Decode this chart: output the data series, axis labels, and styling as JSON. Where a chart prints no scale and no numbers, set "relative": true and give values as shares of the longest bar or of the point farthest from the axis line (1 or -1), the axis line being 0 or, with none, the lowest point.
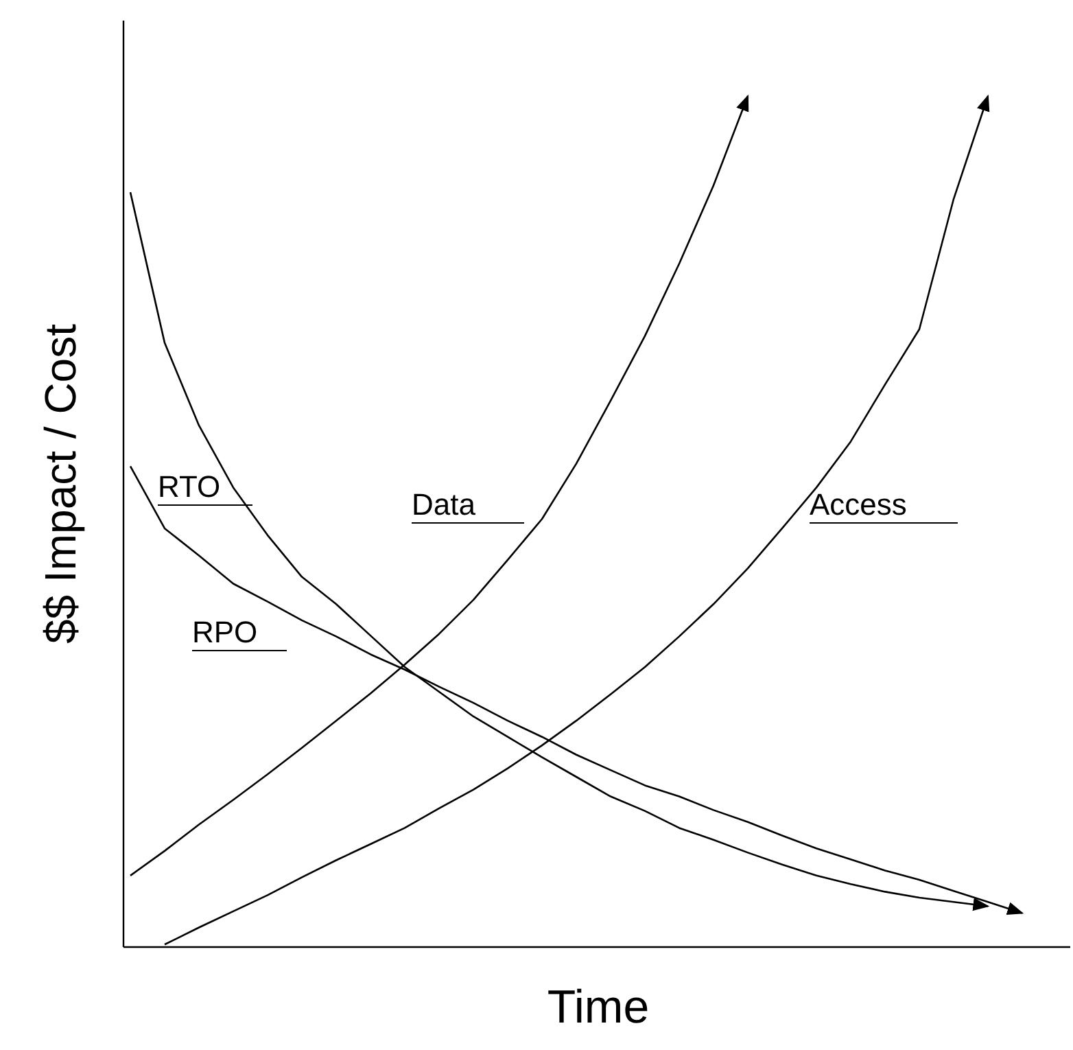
{
  "chart_data": {
    "type": "line",
    "relative": true,
    "xlabel": "Time",
    "ylabel": "$$ Impact / Cost",
    "line_style": "solid",
    "marker": "none",
    "legend": false,
    "categories": [
      null,
      null,
      null,
      null,
      null,
      null,
      null,
      null,
      null,
      null,
      null,
      null,
      null,
      null,
      null,
      null,
      null,
      null,
      null,
      null,
      null,
      null,
      null,
      null,
      null,
      null,
      null
    ],
    "series": [
      {
        "name": "RTO",
        "color": "#000000",
        "values": [
          0.887,
          0.71,
          0.613,
          0.54,
          0.484,
          0.435,
          0.403,
          0.366,
          0.329,
          0.3,
          0.271,
          0.247,
          0.223,
          0.2,
          0.177,
          0.16,
          0.14,
          0.126,
          0.111,
          0.097,
          0.084,
          0.074,
          0.065,
          0.058,
          0.053,
          0.048,
          null
        ]
      },
      {
        "name": "RPO",
        "color": "#000000",
        "values": [
          0.565,
          0.492,
          0.46,
          0.427,
          0.406,
          0.384,
          0.365,
          0.344,
          0.326,
          0.306,
          0.287,
          0.266,
          0.247,
          0.226,
          0.208,
          0.19,
          0.177,
          0.161,
          0.147,
          0.131,
          0.116,
          0.103,
          0.09,
          0.079,
          0.066,
          0.053,
          0.04
        ]
      },
      {
        "name": "Data",
        "color": "#000000",
        "values": [
          0.084,
          0.113,
          0.144,
          0.173,
          0.203,
          0.234,
          0.266,
          0.298,
          0.332,
          0.368,
          0.408,
          0.455,
          0.503,
          0.568,
          0.642,
          0.718,
          0.803,
          0.895,
          1,
          null,
          null,
          null,
          null,
          null,
          null,
          null,
          null
        ]
      },
      {
        "name": "Access",
        "color": "#000000",
        "values": [
          null,
          0.003,
          0.023,
          0.042,
          0.061,
          0.082,
          0.102,
          0.121,
          0.14,
          0.163,
          0.185,
          0.21,
          0.237,
          0.266,
          0.297,
          0.329,
          0.365,
          0.403,
          0.445,
          0.492,
          0.54,
          0.594,
          0.661,
          0.726,
          0.879,
          1,
          null
        ]
      }
    ]
  }
}
